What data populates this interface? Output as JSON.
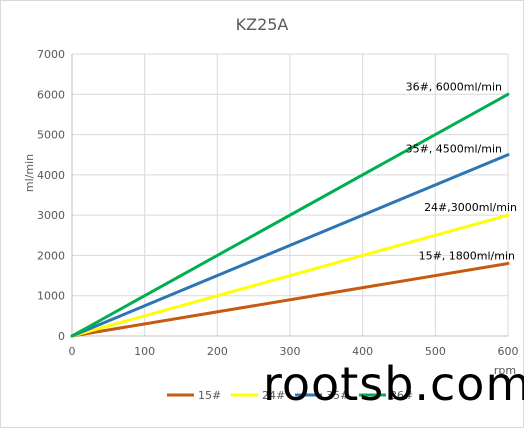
{
  "chart_data": {
    "type": "line",
    "title": "KZ25A",
    "xlabel": "rpm",
    "ylabel": "ml/min",
    "xlim": [
      0,
      600
    ],
    "ylim": [
      0,
      7000
    ],
    "xticks": [
      0,
      100,
      200,
      300,
      400,
      500,
      600
    ],
    "yticks": [
      0,
      1000,
      2000,
      3000,
      4000,
      5000,
      6000,
      7000
    ],
    "grid": true,
    "legend": "bottom",
    "series": [
      {
        "name": "15#",
        "color": "#c55a11",
        "x": [
          0,
          600
        ],
        "y": [
          0,
          1800
        ]
      },
      {
        "name": "24#",
        "color": "#ffff00",
        "x": [
          0,
          600
        ],
        "y": [
          0,
          3000
        ]
      },
      {
        "name": "35#",
        "color": "#2e75b6",
        "x": [
          0,
          600
        ],
        "y": [
          0,
          4500
        ]
      },
      {
        "name": "36#",
        "color": "#00b050",
        "x": [
          0,
          600
        ],
        "y": [
          0,
          6000
        ]
      }
    ],
    "annotations": [
      {
        "text": "36#,  6000ml/min",
        "x": 600,
        "y": 6000
      },
      {
        "text": "35#,  4500ml/min",
        "x": 600,
        "y": 4500
      },
      {
        "text": "24#,3000ml/min",
        "x": 600,
        "y": 3000
      },
      {
        "text": "15#,  1800ml/min",
        "x": 600,
        "y": 1800
      }
    ]
  },
  "watermark": "rootsb.com"
}
